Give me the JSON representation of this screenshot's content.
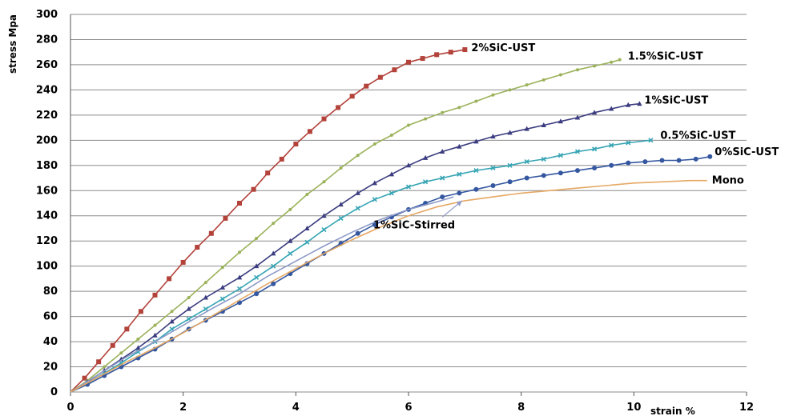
{
  "chart_data": {
    "type": "line",
    "title": "",
    "xlabel": "strain %",
    "ylabel": "stress Mpa",
    "xlim": [
      0,
      12
    ],
    "ylim": [
      0,
      300
    ],
    "xticks": [
      0,
      2,
      4,
      6,
      8,
      10,
      12
    ],
    "yticks": [
      0,
      20,
      40,
      60,
      80,
      100,
      120,
      140,
      160,
      180,
      200,
      220,
      240,
      260,
      280,
      300
    ],
    "grid": "horizontal",
    "legend": "inline labels at line ends",
    "series": [
      {
        "name": "2%SiC-UST",
        "color": "#b2423a",
        "marker": "square",
        "x": [
          0,
          0.25,
          0.5,
          0.75,
          1.0,
          1.25,
          1.5,
          1.75,
          2.0,
          2.25,
          2.5,
          2.75,
          3.0,
          3.25,
          3.5,
          3.75,
          4.0,
          4.25,
          4.5,
          4.75,
          5.0,
          5.25,
          5.5,
          5.75,
          6.0,
          6.25,
          6.5,
          6.75,
          7.0
        ],
        "y": [
          0,
          11,
          24,
          37,
          50,
          64,
          77,
          90,
          103,
          115,
          126,
          138,
          150,
          161,
          174,
          185,
          197,
          207,
          217,
          226,
          235,
          243,
          250,
          256,
          262,
          265,
          268,
          270,
          272
        ]
      },
      {
        "name": "1.5%SiC-UST",
        "color": "#9bb25a",
        "marker": "circle",
        "x": [
          0,
          0.3,
          0.6,
          0.9,
          1.2,
          1.5,
          1.8,
          2.1,
          2.4,
          2.7,
          3.0,
          3.3,
          3.6,
          3.9,
          4.2,
          4.5,
          4.8,
          5.1,
          5.4,
          5.7,
          6.0,
          6.3,
          6.6,
          6.9,
          7.2,
          7.5,
          7.8,
          8.1,
          8.4,
          8.7,
          9.0,
          9.3,
          9.6,
          9.75
        ],
        "y": [
          0,
          9,
          20,
          31,
          42,
          53,
          64,
          75,
          87,
          99,
          111,
          122,
          134,
          145,
          157,
          167,
          178,
          188,
          197,
          204,
          212,
          217,
          222,
          226,
          231,
          236,
          240,
          244,
          248,
          252,
          256,
          259,
          262,
          264
        ]
      },
      {
        "name": "1%SiC-UST",
        "color": "#3c3d80",
        "marker": "triangle",
        "x": [
          0,
          0.3,
          0.6,
          0.9,
          1.2,
          1.5,
          1.8,
          2.1,
          2.4,
          2.7,
          3.0,
          3.3,
          3.6,
          3.9,
          4.2,
          4.5,
          4.8,
          5.1,
          5.4,
          5.7,
          6.0,
          6.3,
          6.6,
          6.9,
          7.2,
          7.5,
          7.8,
          8.1,
          8.4,
          8.7,
          9.0,
          9.3,
          9.6,
          9.9,
          10.1
        ],
        "y": [
          0,
          8,
          17,
          26,
          35,
          45,
          56,
          66,
          75,
          83,
          91,
          100,
          110,
          120,
          130,
          140,
          149,
          158,
          166,
          173,
          180,
          186,
          191,
          195,
          199,
          203,
          206,
          209,
          212,
          215,
          218,
          222,
          225,
          228,
          229
        ]
      },
      {
        "name": "0.5%SiC-UST",
        "color": "#36a4b4",
        "marker": "x",
        "x": [
          0,
          0.3,
          0.6,
          0.9,
          1.2,
          1.5,
          1.8,
          2.1,
          2.4,
          2.7,
          3.0,
          3.3,
          3.6,
          3.9,
          4.2,
          4.5,
          4.8,
          5.1,
          5.4,
          5.7,
          6.0,
          6.3,
          6.6,
          6.9,
          7.2,
          7.5,
          7.8,
          8.1,
          8.4,
          8.7,
          9.0,
          9.3,
          9.6,
          9.9,
          10.3
        ],
        "y": [
          0,
          7,
          15,
          23,
          32,
          40,
          50,
          58,
          66,
          74,
          82,
          91,
          100,
          110,
          119,
          129,
          138,
          146,
          153,
          158,
          163,
          167,
          170,
          173,
          176,
          178,
          180,
          183,
          185,
          188,
          191,
          193,
          196,
          198,
          200
        ]
      },
      {
        "name": "0%SiC-UST",
        "color": "#3457a0",
        "marker": "circle",
        "x": [
          0,
          0.3,
          0.6,
          0.9,
          1.2,
          1.5,
          1.8,
          2.1,
          2.4,
          2.7,
          3.0,
          3.3,
          3.6,
          3.9,
          4.2,
          4.5,
          4.8,
          5.1,
          5.4,
          5.7,
          6.0,
          6.3,
          6.6,
          6.9,
          7.2,
          7.5,
          7.8,
          8.1,
          8.4,
          8.7,
          9.0,
          9.3,
          9.6,
          9.9,
          10.2,
          10.5,
          10.8,
          11.1,
          11.35
        ],
        "y": [
          0,
          6,
          13,
          20,
          27,
          34,
          42,
          50,
          57,
          64,
          71,
          78,
          86,
          94,
          102,
          110,
          118,
          126,
          133,
          139,
          145,
          150,
          155,
          158,
          161,
          164,
          167,
          170,
          172,
          174,
          176,
          178,
          180,
          182,
          183,
          184,
          184,
          185,
          187
        ]
      },
      {
        "name": "1%SiC-Stirred",
        "color": "#8d9ac8",
        "marker": "none",
        "x": [
          0,
          0.5,
          1.0,
          1.5,
          2.0,
          2.5,
          3.0,
          3.5,
          4.0,
          4.5,
          5.0,
          5.5,
          6.0,
          6.5,
          6.8
        ],
        "y": [
          0,
          14,
          28,
          40,
          53,
          66,
          78,
          92,
          104,
          116,
          127,
          137,
          145,
          151,
          155
        ]
      },
      {
        "name": "Mono",
        "color": "#e5a864",
        "marker": "none",
        "x": [
          0,
          0.5,
          1.0,
          1.5,
          2.0,
          2.5,
          3.0,
          3.5,
          4.0,
          4.5,
          5.0,
          5.5,
          6.0,
          6.5,
          7.0,
          7.5,
          8.0,
          8.5,
          9.0,
          9.5,
          10.0,
          10.5,
          11.0,
          11.3
        ],
        "y": [
          0,
          12,
          24,
          35,
          47,
          60,
          73,
          86,
          98,
          110,
          121,
          131,
          140,
          147,
          152,
          155,
          158,
          160,
          162,
          164,
          166,
          167,
          168,
          168
        ]
      }
    ]
  }
}
